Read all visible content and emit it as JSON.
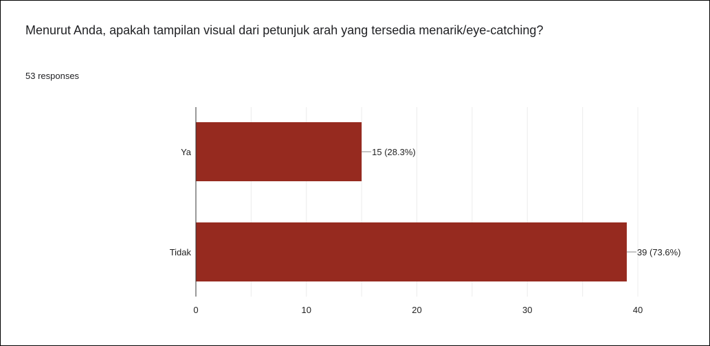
{
  "question": {
    "text": "Menurut Anda, apakah tampilan visual dari petunjuk arah yang tersedia menarik/eye-catching?",
    "response_count": "53 responses"
  },
  "colors": {
    "bar": "#962a1f",
    "grid": "#ececec",
    "axis": "#333333",
    "text": "#202124"
  },
  "chart_data": {
    "type": "bar",
    "orientation": "horizontal",
    "categories": [
      "Ya",
      "Tidak"
    ],
    "values": [
      15,
      39
    ],
    "data_labels": [
      "15 (28.3%)",
      "39 (73.6%)"
    ],
    "xlim": [
      0,
      40
    ],
    "xticks": [
      "0",
      "10",
      "20",
      "30",
      "40"
    ],
    "grid": true
  }
}
